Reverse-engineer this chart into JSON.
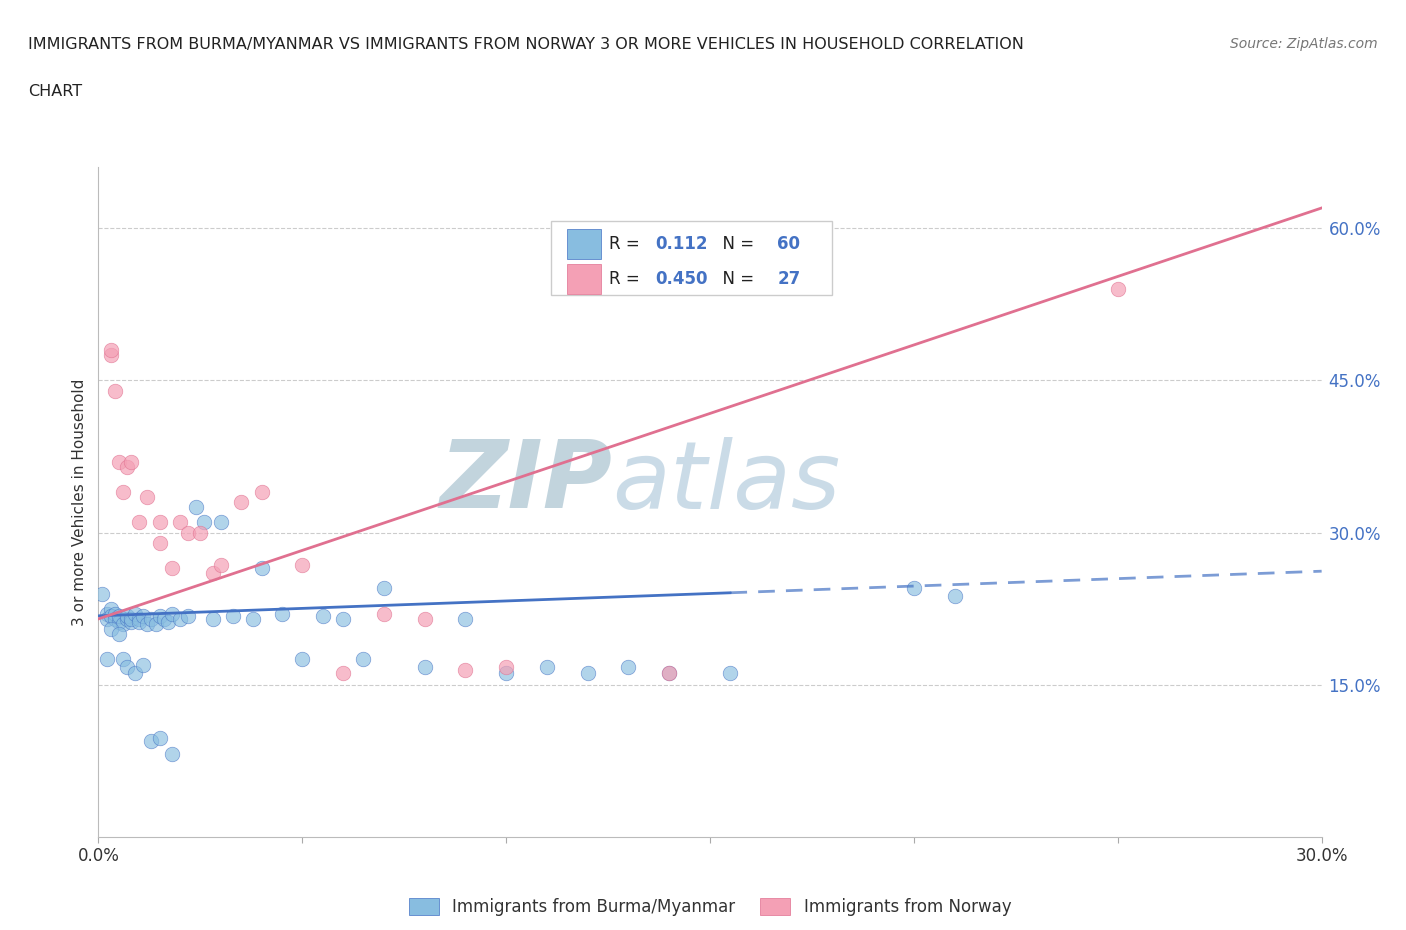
{
  "title_line1": "IMMIGRANTS FROM BURMA/MYANMAR VS IMMIGRANTS FROM NORWAY 3 OR MORE VEHICLES IN HOUSEHOLD CORRELATION",
  "title_line2": "CHART",
  "source_text": "Source: ZipAtlas.com",
  "ylabel": "3 or more Vehicles in Household",
  "xlim": [
    0.0,
    0.3
  ],
  "ylim": [
    0.0,
    0.66
  ],
  "xticks": [
    0.0,
    0.05,
    0.1,
    0.15,
    0.2,
    0.25,
    0.3
  ],
  "xtick_labels": [
    "0.0%",
    "",
    "",
    "",
    "",
    "",
    "30.0%"
  ],
  "ytick_positions": [
    0.15,
    0.3,
    0.45,
    0.6
  ],
  "ytick_labels": [
    "15.0%",
    "30.0%",
    "45.0%",
    "60.0%"
  ],
  "hlines": [
    0.15,
    0.3,
    0.45,
    0.6
  ],
  "R_burma": 0.112,
  "N_burma": 60,
  "R_norway": 0.45,
  "N_norway": 27,
  "color_burma": "#88bde0",
  "color_norway": "#f4a0b5",
  "line_burma": "#4472c4",
  "line_norway": "#e07090",
  "trend_burma_x0": 0.0,
  "trend_burma_x1": 0.3,
  "trend_burma_y0": 0.218,
  "trend_burma_y1": 0.262,
  "trend_burma_solid_end": 0.155,
  "trend_norway_x0": 0.0,
  "trend_norway_x1": 0.3,
  "trend_norway_y0": 0.215,
  "trend_norway_y1": 0.62,
  "legend_label_burma": "Immigrants from Burma/Myanmar",
  "legend_label_norway": "Immigrants from Norway",
  "watermark": "ZIPatlas",
  "watermark_color": "#d0e4f0",
  "burma_x": [
    0.001,
    0.002,
    0.002,
    0.003,
    0.003,
    0.004,
    0.004,
    0.005,
    0.005,
    0.006,
    0.007,
    0.007,
    0.008,
    0.008,
    0.009,
    0.01,
    0.01,
    0.011,
    0.012,
    0.013,
    0.014,
    0.015,
    0.016,
    0.017,
    0.018,
    0.02,
    0.022,
    0.024,
    0.026,
    0.028,
    0.03,
    0.033,
    0.038,
    0.04,
    0.045,
    0.05,
    0.055,
    0.06,
    0.065,
    0.07,
    0.08,
    0.09,
    0.1,
    0.11,
    0.12,
    0.13,
    0.14,
    0.155,
    0.2,
    0.21,
    0.002,
    0.003,
    0.005,
    0.006,
    0.007,
    0.009,
    0.011,
    0.013,
    0.015,
    0.018
  ],
  "burma_y": [
    0.24,
    0.22,
    0.215,
    0.225,
    0.218,
    0.22,
    0.215,
    0.212,
    0.218,
    0.21,
    0.215,
    0.218,
    0.212,
    0.215,
    0.22,
    0.215,
    0.212,
    0.218,
    0.21,
    0.215,
    0.21,
    0.218,
    0.215,
    0.212,
    0.22,
    0.215,
    0.218,
    0.325,
    0.31,
    0.215,
    0.31,
    0.218,
    0.215,
    0.265,
    0.22,
    0.175,
    0.218,
    0.215,
    0.175,
    0.245,
    0.168,
    0.215,
    0.162,
    0.168,
    0.162,
    0.168,
    0.162,
    0.162,
    0.245,
    0.238,
    0.175,
    0.205,
    0.2,
    0.175,
    0.168,
    0.162,
    0.17,
    0.095,
    0.098,
    0.082
  ],
  "norway_x": [
    0.003,
    0.003,
    0.004,
    0.005,
    0.006,
    0.007,
    0.008,
    0.01,
    0.012,
    0.015,
    0.015,
    0.018,
    0.02,
    0.022,
    0.025,
    0.028,
    0.03,
    0.035,
    0.04,
    0.05,
    0.06,
    0.07,
    0.08,
    0.09,
    0.1,
    0.14,
    0.25
  ],
  "norway_y": [
    0.475,
    0.48,
    0.44,
    0.37,
    0.34,
    0.365,
    0.37,
    0.31,
    0.335,
    0.29,
    0.31,
    0.265,
    0.31,
    0.3,
    0.3,
    0.26,
    0.268,
    0.33,
    0.34,
    0.268,
    0.162,
    0.22,
    0.215,
    0.165,
    0.168,
    0.162,
    0.54
  ]
}
